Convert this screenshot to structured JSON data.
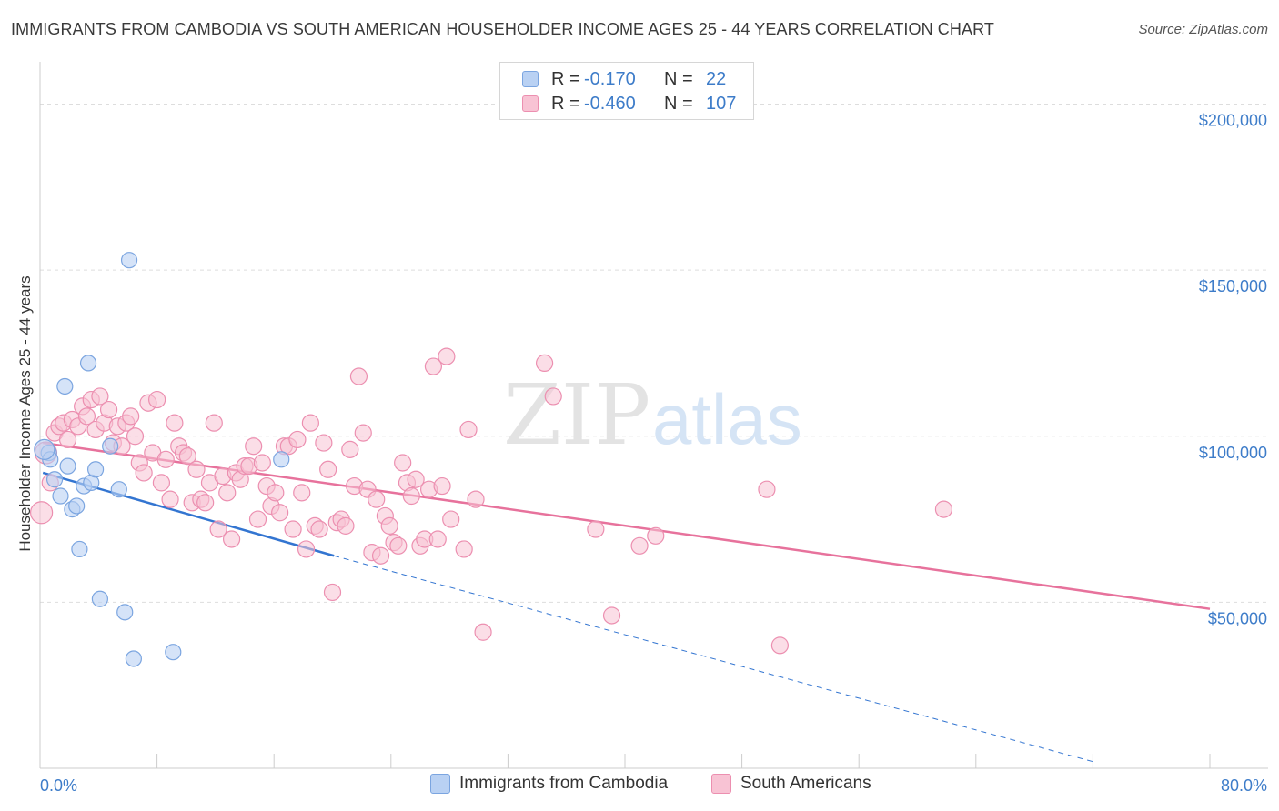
{
  "header": {
    "title": "IMMIGRANTS FROM CAMBODIA VS SOUTH AMERICAN HOUSEHOLDER INCOME AGES 25 - 44 YEARS CORRELATION CHART",
    "source": "Source: ZipAtlas.com"
  },
  "watermark": {
    "zip": "ZIP",
    "atlas": "atlas"
  },
  "colors": {
    "blue_fill": "#b9d1f3",
    "blue_stroke": "#7ba5e0",
    "blue_line": "#3375d1",
    "pink_fill": "#f8c3d4",
    "pink_stroke": "#ec8fb0",
    "pink_line": "#e7729c",
    "tick_text": "#3d7cc9",
    "grid": "#dddddd"
  },
  "legend": {
    "rows": [
      {
        "r_label": "R =",
        "r_value": "-0.170",
        "n_label": "N =",
        "n_value": "22"
      },
      {
        "r_label": "R =",
        "r_value": "-0.460",
        "n_label": "N =",
        "n_value": "107"
      }
    ]
  },
  "bottom_legend": {
    "series_a": "Immigrants from Cambodia",
    "series_b": "South Americans"
  },
  "chart_data": {
    "type": "scatter",
    "title": "IMMIGRANTS FROM CAMBODIA VS SOUTH AMERICAN HOUSEHOLDER INCOME AGES 25 - 44 YEARS CORRELATION CHART",
    "xlabel": "",
    "ylabel": "Householder Income Ages 25 - 44 years",
    "xlim": [
      0,
      80
    ],
    "ylim": [
      0,
      210000
    ],
    "x_tick_labels": {
      "min": "0.0%",
      "max": "80.0%"
    },
    "y_ticks": [
      {
        "value": 50000,
        "label": "$50,000"
      },
      {
        "value": 100000,
        "label": "$100,000"
      },
      {
        "value": 150000,
        "label": "$150,000"
      },
      {
        "value": 200000,
        "label": "$200,000"
      }
    ],
    "x_minor_ticks": [
      0,
      8,
      16,
      24,
      32,
      40,
      48,
      56,
      64,
      72,
      80
    ],
    "series": [
      {
        "name": "Immigrants from Cambodia",
        "color": "#b9d1f3",
        "points": [
          [
            0.6,
            95000
          ],
          [
            0.7,
            93000
          ],
          [
            1.0,
            87000
          ],
          [
            1.4,
            82000
          ],
          [
            1.7,
            115000
          ],
          [
            1.9,
            91000
          ],
          [
            2.2,
            78000
          ],
          [
            2.5,
            79000
          ],
          [
            2.7,
            66000
          ],
          [
            3.0,
            85000
          ],
          [
            3.3,
            122000
          ],
          [
            3.5,
            86000
          ],
          [
            3.8,
            90000
          ],
          [
            4.1,
            51000
          ],
          [
            4.8,
            97000
          ],
          [
            5.4,
            84000
          ],
          [
            5.8,
            47000
          ],
          [
            6.1,
            153000
          ],
          [
            6.4,
            33000
          ],
          [
            9.1,
            35000
          ],
          [
            16.5,
            93000
          ],
          [
            0.3,
            96000
          ]
        ],
        "trend": {
          "x_start": 0.2,
          "y_start": 89000,
          "x_solid_end": 20.1,
          "y_solid_end": 64000,
          "x_dash_end": 72.0,
          "y_dash_end": 2000
        }
      },
      {
        "name": "South Americans",
        "color": "#f8c3d4",
        "points": [
          [
            0.1,
            77000
          ],
          [
            0.4,
            95000
          ],
          [
            0.7,
            86000
          ],
          [
            1.0,
            101000
          ],
          [
            1.3,
            103000
          ],
          [
            1.6,
            104000
          ],
          [
            1.9,
            99000
          ],
          [
            2.2,
            105000
          ],
          [
            2.6,
            103000
          ],
          [
            2.9,
            109000
          ],
          [
            3.2,
            106000
          ],
          [
            3.5,
            111000
          ],
          [
            3.8,
            102000
          ],
          [
            4.1,
            112000
          ],
          [
            4.4,
            104000
          ],
          [
            4.7,
            108000
          ],
          [
            5.0,
            98000
          ],
          [
            5.3,
            103000
          ],
          [
            5.6,
            97000
          ],
          [
            5.9,
            104000
          ],
          [
            6.2,
            106000
          ],
          [
            6.5,
            100000
          ],
          [
            6.8,
            92000
          ],
          [
            7.1,
            89000
          ],
          [
            7.4,
            110000
          ],
          [
            7.7,
            95000
          ],
          [
            8.0,
            111000
          ],
          [
            8.3,
            86000
          ],
          [
            8.6,
            93000
          ],
          [
            8.9,
            81000
          ],
          [
            9.2,
            104000
          ],
          [
            9.5,
            97000
          ],
          [
            9.8,
            95000
          ],
          [
            10.1,
            94000
          ],
          [
            10.4,
            80000
          ],
          [
            10.7,
            90000
          ],
          [
            11.0,
            81000
          ],
          [
            11.3,
            80000
          ],
          [
            11.6,
            86000
          ],
          [
            11.9,
            104000
          ],
          [
            12.2,
            72000
          ],
          [
            12.5,
            88000
          ],
          [
            12.8,
            83000
          ],
          [
            13.1,
            69000
          ],
          [
            13.4,
            89000
          ],
          [
            13.7,
            87000
          ],
          [
            14.0,
            91000
          ],
          [
            14.3,
            91000
          ],
          [
            14.6,
            97000
          ],
          [
            14.9,
            75000
          ],
          [
            15.2,
            92000
          ],
          [
            15.5,
            85000
          ],
          [
            15.8,
            79000
          ],
          [
            16.1,
            83000
          ],
          [
            16.4,
            77000
          ],
          [
            16.7,
            97000
          ],
          [
            17.0,
            97000
          ],
          [
            17.3,
            72000
          ],
          [
            17.6,
            99000
          ],
          [
            17.9,
            83000
          ],
          [
            18.2,
            66000
          ],
          [
            18.5,
            104000
          ],
          [
            18.8,
            73000
          ],
          [
            19.1,
            72000
          ],
          [
            19.4,
            98000
          ],
          [
            19.7,
            90000
          ],
          [
            20.0,
            53000
          ],
          [
            20.3,
            74000
          ],
          [
            20.6,
            75000
          ],
          [
            20.9,
            73000
          ],
          [
            21.2,
            96000
          ],
          [
            21.5,
            85000
          ],
          [
            21.8,
            118000
          ],
          [
            22.1,
            101000
          ],
          [
            22.4,
            84000
          ],
          [
            22.7,
            65000
          ],
          [
            23.0,
            81000
          ],
          [
            23.3,
            64000
          ],
          [
            23.6,
            76000
          ],
          [
            23.9,
            73000
          ],
          [
            24.2,
            68000
          ],
          [
            24.5,
            67000
          ],
          [
            24.8,
            92000
          ],
          [
            25.1,
            86000
          ],
          [
            25.4,
            82000
          ],
          [
            25.7,
            87000
          ],
          [
            26.0,
            67000
          ],
          [
            26.3,
            69000
          ],
          [
            26.6,
            84000
          ],
          [
            26.9,
            121000
          ],
          [
            27.2,
            69000
          ],
          [
            27.5,
            85000
          ],
          [
            27.8,
            124000
          ],
          [
            28.1,
            75000
          ],
          [
            29.0,
            66000
          ],
          [
            29.3,
            102000
          ],
          [
            29.8,
            81000
          ],
          [
            30.3,
            41000
          ],
          [
            34.5,
            122000
          ],
          [
            35.1,
            112000
          ],
          [
            38.0,
            72000
          ],
          [
            39.1,
            46000
          ],
          [
            41.0,
            67000
          ],
          [
            42.1,
            70000
          ],
          [
            49.7,
            84000
          ],
          [
            50.6,
            37000
          ],
          [
            61.8,
            78000
          ]
        ],
        "trend": {
          "x_start": 0.2,
          "y_start": 98000,
          "x_end": 80.0,
          "y_end": 48000
        }
      }
    ]
  }
}
